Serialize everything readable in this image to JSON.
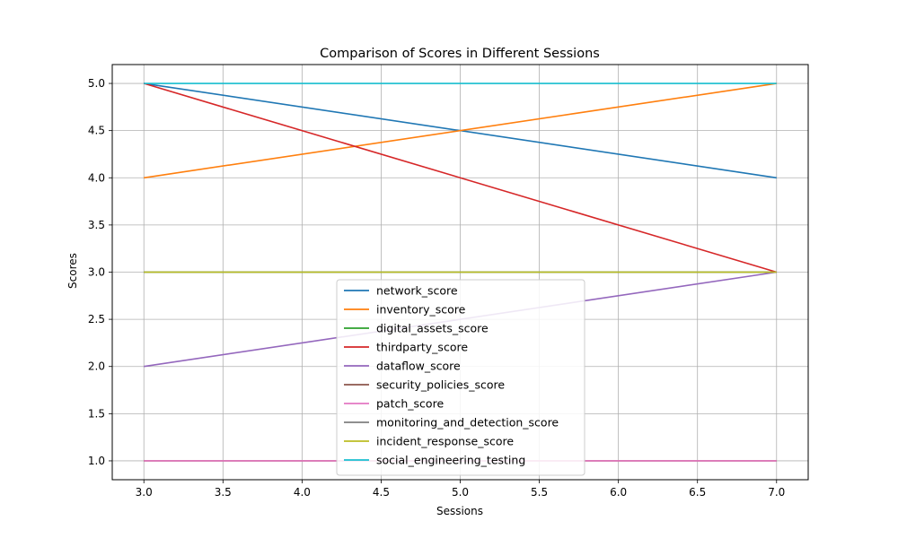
{
  "chart_data": {
    "type": "line",
    "title": "Comparison of Scores in Different Sessions",
    "xlabel": "Sessions",
    "ylabel": "Scores",
    "x": [
      3,
      7
    ],
    "xlim": [
      2.8,
      7.2
    ],
    "ylim": [
      0.8,
      5.2
    ],
    "xticks": [
      3.0,
      3.5,
      4.0,
      4.5,
      5.0,
      5.5,
      6.0,
      6.5,
      7.0
    ],
    "yticks": [
      1.0,
      1.5,
      2.0,
      2.5,
      3.0,
      3.5,
      4.0,
      4.5,
      5.0
    ],
    "xtick_labels": [
      "3.0",
      "3.5",
      "4.0",
      "4.5",
      "5.0",
      "5.5",
      "6.0",
      "6.5",
      "7.0"
    ],
    "ytick_labels": [
      "1.0",
      "1.5",
      "2.0",
      "2.5",
      "3.0",
      "3.5",
      "4.0",
      "4.5",
      "5.0"
    ],
    "grid": true,
    "legend_position": "lower-center",
    "series": [
      {
        "name": "network_score",
        "values": [
          5,
          4
        ],
        "color": "#1f77b4"
      },
      {
        "name": "inventory_score",
        "values": [
          4,
          5
        ],
        "color": "#ff7f0e"
      },
      {
        "name": "digital_assets_score",
        "values": [
          3,
          3
        ],
        "color": "#2ca02c"
      },
      {
        "name": "thirdparty_score",
        "values": [
          5,
          3
        ],
        "color": "#d62728"
      },
      {
        "name": "dataflow_score",
        "values": [
          2,
          3
        ],
        "color": "#9467bd"
      },
      {
        "name": "security_policies_score",
        "values": [
          1,
          1
        ],
        "color": "#8c564b"
      },
      {
        "name": "patch_score",
        "values": [
          1,
          1
        ],
        "color": "#e377c2"
      },
      {
        "name": "monitoring_and_detection_score",
        "values": [
          3,
          3
        ],
        "color": "#7f7f7f"
      },
      {
        "name": "incident_response_score",
        "values": [
          3,
          3
        ],
        "color": "#bcbd22"
      },
      {
        "name": "social_engineering_testing",
        "values": [
          5,
          5
        ],
        "color": "#17becf"
      }
    ]
  }
}
